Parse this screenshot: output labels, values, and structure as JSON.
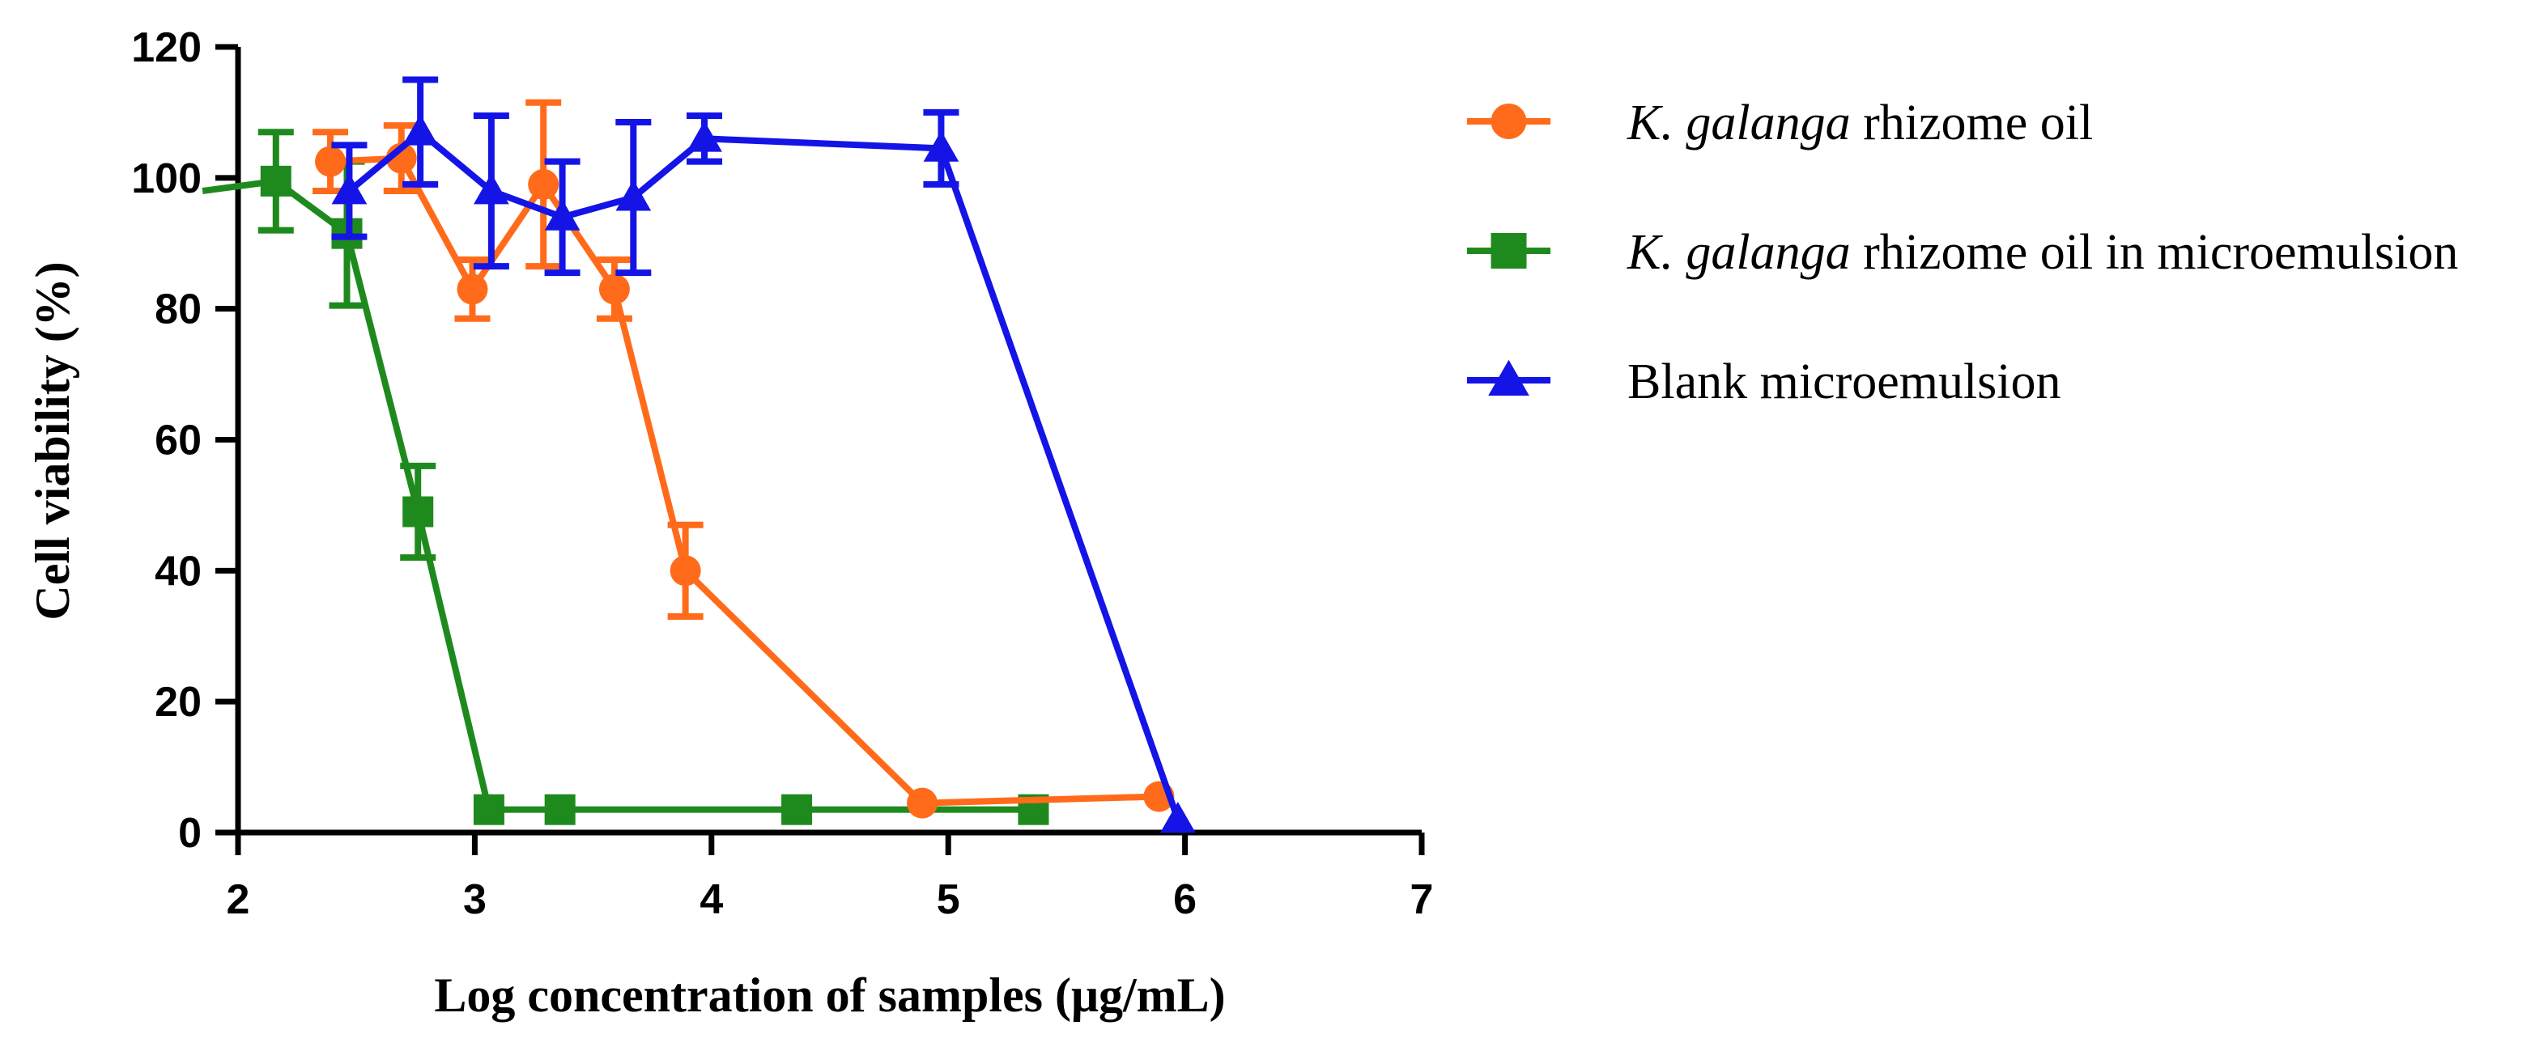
{
  "chart_data": {
    "type": "line",
    "xlabel": "Log concentration of samples (μg/mL)",
    "ylabel": "Cell viability (%)",
    "xlim": [
      2,
      7
    ],
    "ylim": [
      0,
      120
    ],
    "x_ticks": [
      "2",
      "3",
      "4",
      "5",
      "6",
      "7"
    ],
    "y_ticks": [
      "0",
      "20",
      "40",
      "60",
      "80",
      "100",
      "120"
    ],
    "grid": false,
    "legend_position": "right",
    "series": [
      {
        "name_italic": "K. galanga",
        "name_rest": " rhizome oil",
        "color": "#ff6b1a",
        "marker": "circle",
        "points": [
          {
            "x": 2.39,
            "y": 102.5,
            "err": 4.5
          },
          {
            "x": 2.69,
            "y": 103.0,
            "err": 5.0
          },
          {
            "x": 2.99,
            "y": 83.0,
            "err": 4.5
          },
          {
            "x": 3.29,
            "y": 99.0,
            "err": 12.5
          },
          {
            "x": 3.59,
            "y": 83.0,
            "err": 4.5
          },
          {
            "x": 3.89,
            "y": 40.0,
            "err": 7.0
          },
          {
            "x": 4.89,
            "y": 4.5,
            "err": 0
          },
          {
            "x": 5.89,
            "y": 5.5,
            "err": 0
          }
        ]
      },
      {
        "name_italic": "K. galanga",
        "name_rest": " rhizome oil in microemulsion",
        "color": "#1e8a1e",
        "marker": "square",
        "points": [
          {
            "x": 1.85,
            "y": 98.0,
            "err": 0
          },
          {
            "x": 2.16,
            "y": 99.5,
            "err": 7.5
          },
          {
            "x": 2.46,
            "y": 91.5,
            "err": 11.0
          },
          {
            "x": 2.76,
            "y": 49.0,
            "err": 7.0
          },
          {
            "x": 3.06,
            "y": 3.5,
            "err": 0
          },
          {
            "x": 3.36,
            "y": 3.5,
            "err": 0
          },
          {
            "x": 4.36,
            "y": 3.5,
            "err": 0
          },
          {
            "x": 5.36,
            "y": 3.5,
            "err": 0
          }
        ]
      },
      {
        "name_italic": "",
        "name_rest": "Blank microemulsion",
        "color": "#1414e6",
        "marker": "triangle",
        "points": [
          {
            "x": 2.47,
            "y": 98.0,
            "err": 7.0
          },
          {
            "x": 2.77,
            "y": 107.0,
            "err": 8.0
          },
          {
            "x": 3.07,
            "y": 98.0,
            "err": 11.5
          },
          {
            "x": 3.37,
            "y": 94.0,
            "err": 8.5
          },
          {
            "x": 3.67,
            "y": 97.0,
            "err": 11.5
          },
          {
            "x": 3.97,
            "y": 106.0,
            "err": 3.5
          },
          {
            "x": 4.97,
            "y": 104.5,
            "err": 5.5
          },
          {
            "x": 5.97,
            "y": 2.0,
            "err": 0
          }
        ]
      }
    ]
  }
}
